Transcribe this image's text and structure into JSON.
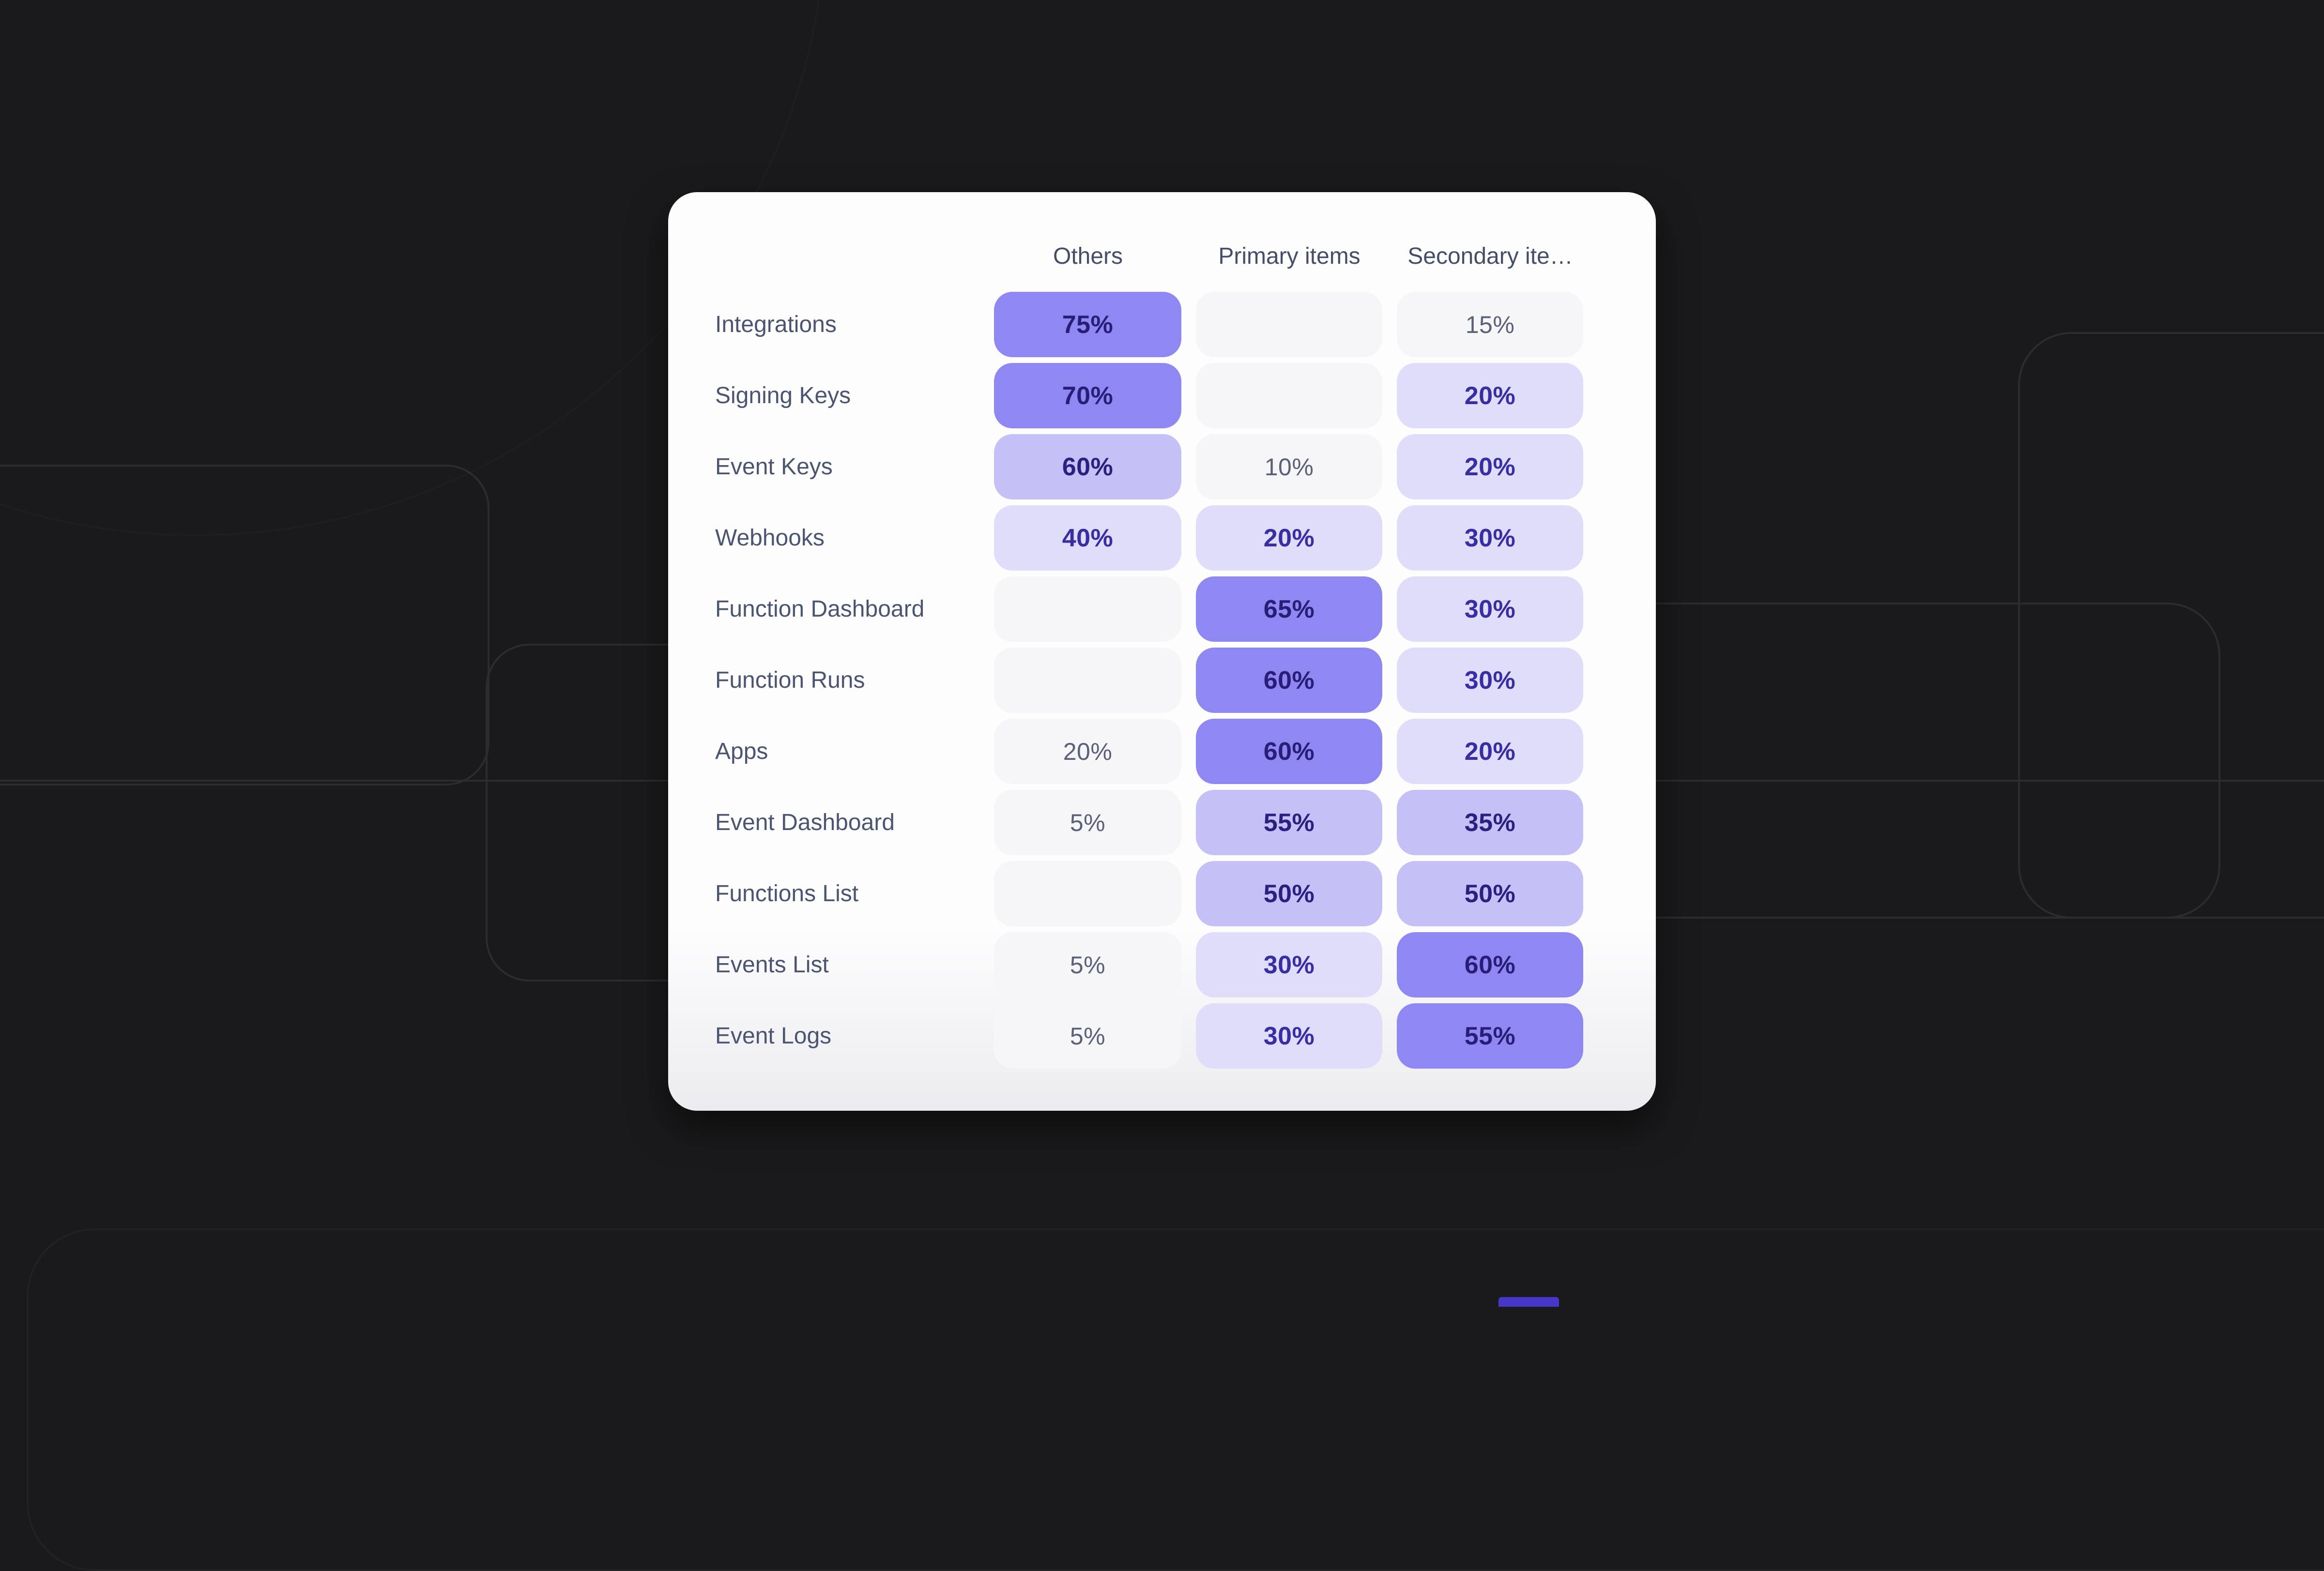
{
  "page": {
    "background_color": "#1a1a1c",
    "decoration_line_color": "#2c2c2e"
  },
  "card": {
    "background_color": "#fdfdfe",
    "bottom_fade_color": "#ecebef"
  },
  "chart_data": {
    "type": "heatmap",
    "unit": "%",
    "columns": [
      "Others",
      "Primary items",
      "Secondary ite…"
    ],
    "rows": [
      "Integrations",
      "Signing Keys",
      "Event Keys",
      "Webhooks",
      "Function Dashboard",
      "Function Runs",
      "Apps",
      "Event Dashboard",
      "Functions List",
      "Events List",
      "Event Logs"
    ],
    "values": [
      [
        75,
        null,
        15
      ],
      [
        70,
        null,
        20
      ],
      [
        60,
        10,
        20
      ],
      [
        40,
        20,
        30
      ],
      [
        null,
        65,
        30
      ],
      [
        null,
        60,
        30
      ],
      [
        20,
        60,
        20
      ],
      [
        5,
        55,
        35
      ],
      [
        null,
        50,
        50
      ],
      [
        5,
        30,
        60
      ],
      [
        5,
        30,
        55
      ]
    ],
    "levels": [
      [
        "dark",
        "empty",
        "faint"
      ],
      [
        "dark",
        "empty",
        "light"
      ],
      [
        "medium",
        "faint",
        "light"
      ],
      [
        "light",
        "light",
        "light"
      ],
      [
        "empty",
        "dark",
        "light"
      ],
      [
        "empty",
        "dark",
        "light"
      ],
      [
        "faint",
        "dark",
        "light"
      ],
      [
        "faint",
        "medium",
        "medium"
      ],
      [
        "empty",
        "medium",
        "medium"
      ],
      [
        "faint",
        "light",
        "dark"
      ],
      [
        "faint",
        "light",
        "dark"
      ]
    ],
    "title": "",
    "legend": "none",
    "grid": "off"
  },
  "colors": {
    "cell_dark_bg": "#8f88f3",
    "cell_dark_text": "#281e78",
    "cell_medium_bg": "#c5c1f6",
    "cell_medium_text": "#2a2080",
    "cell_light_bg": "#dfddfa",
    "cell_light_text": "#392da2",
    "cell_faint_bg": "#f6f6f8",
    "cell_faint_text": "#596078",
    "header_text": "#454e68",
    "row_label_text": "#4b5470",
    "accent_sliver": "#4537c8"
  }
}
